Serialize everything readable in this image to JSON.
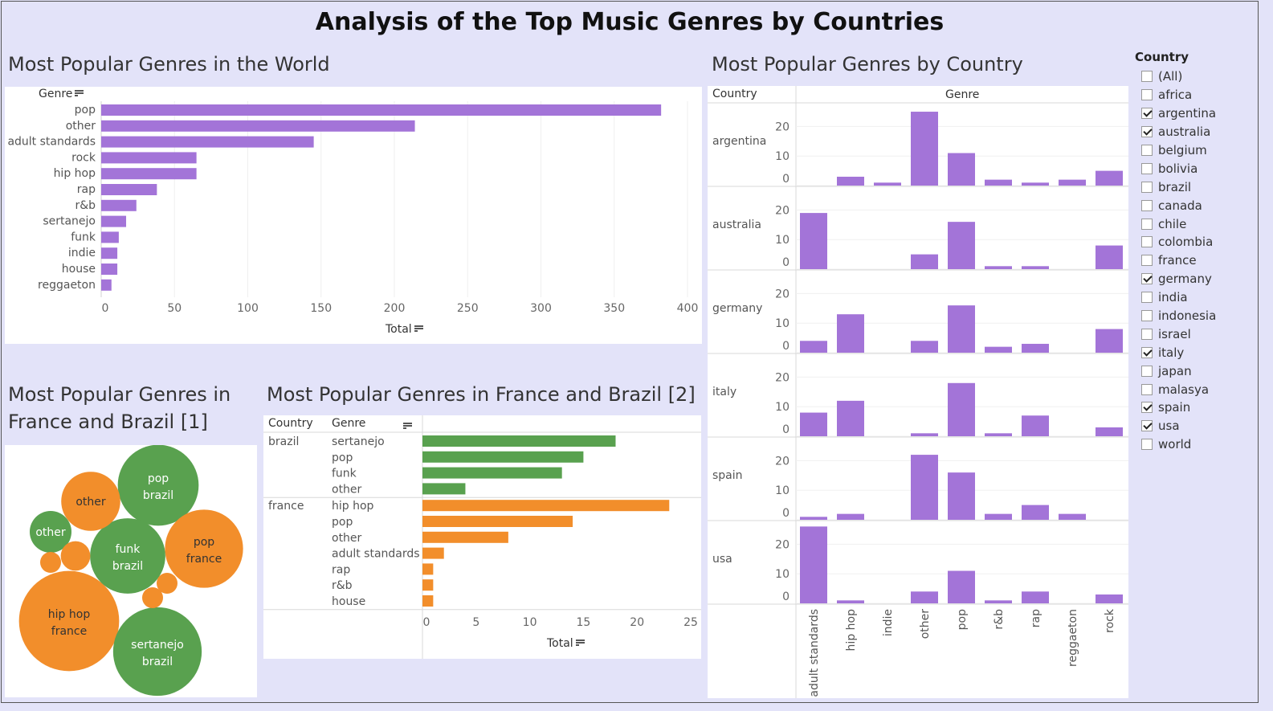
{
  "title": "Analysis of the Top Music Genres by Countries",
  "world": {
    "title": "Most Popular Genres in the World",
    "header": "Genre",
    "xlabel": "Total"
  },
  "bycountry": {
    "title": "Most Popular Genres by Country",
    "col_country": "Country",
    "col_genre": "Genre"
  },
  "bubble": {
    "title_line1": "Most Popular Genres in",
    "title_line2": "France and Brazil [1]"
  },
  "fb": {
    "title": "Most Popular Genres in France and Brazil [2]",
    "col_country": "Country",
    "col_genre": "Genre",
    "xlabel": "Total"
  },
  "filter": {
    "title": "Country",
    "options": [
      {
        "label": "(All)",
        "checked": false
      },
      {
        "label": "africa",
        "checked": false
      },
      {
        "label": "argentina",
        "checked": true
      },
      {
        "label": "australia",
        "checked": true
      },
      {
        "label": "belgium",
        "checked": false
      },
      {
        "label": "bolivia",
        "checked": false
      },
      {
        "label": "brazil",
        "checked": false
      },
      {
        "label": "canada",
        "checked": false
      },
      {
        "label": "chile",
        "checked": false
      },
      {
        "label": "colombia",
        "checked": false
      },
      {
        "label": "france",
        "checked": false
      },
      {
        "label": "germany",
        "checked": true
      },
      {
        "label": "india",
        "checked": false
      },
      {
        "label": "indonesia",
        "checked": false
      },
      {
        "label": "israel",
        "checked": false
      },
      {
        "label": "italy",
        "checked": true
      },
      {
        "label": "japan",
        "checked": false
      },
      {
        "label": "malasya",
        "checked": false
      },
      {
        "label": "spain",
        "checked": true
      },
      {
        "label": "usa",
        "checked": true
      },
      {
        "label": "world",
        "checked": false
      }
    ]
  },
  "colors": {
    "purple": "#a374d8",
    "green": "#59a14f",
    "orange": "#f28e2b",
    "background": "#e3e3f9"
  },
  "chart_data": [
    {
      "id": "world",
      "type": "bar",
      "orientation": "horizontal",
      "categories": [
        "pop",
        "other",
        "adult standards",
        "rock",
        "hip hop",
        "rap",
        "r&b",
        "sertanejo",
        "funk",
        "indie",
        "house",
        "reggaeton"
      ],
      "values": [
        382,
        214,
        145,
        65,
        65,
        38,
        24,
        17,
        12,
        11,
        11,
        7
      ],
      "xlabel": "Total",
      "ylabel": "Genre",
      "xlim": [
        0,
        400
      ],
      "xticks": [
        0,
        50,
        100,
        150,
        200,
        250,
        300,
        350,
        400
      ]
    },
    {
      "id": "bycountry",
      "type": "bar",
      "categories": [
        "adult standards",
        "hip hop",
        "indie",
        "other",
        "pop",
        "r&b",
        "rap",
        "reggaeton",
        "rock"
      ],
      "ylim": [
        0,
        28
      ],
      "yticks": [
        0,
        10,
        20
      ],
      "series": [
        {
          "name": "argentina",
          "values": [
            0,
            3,
            1,
            25,
            11,
            2,
            1,
            2,
            5
          ]
        },
        {
          "name": "australia",
          "values": [
            19,
            0,
            0,
            5,
            16,
            1,
            1,
            0,
            8
          ]
        },
        {
          "name": "germany",
          "values": [
            4,
            13,
            0,
            4,
            16,
            2,
            3,
            0,
            8
          ]
        },
        {
          "name": "italy",
          "values": [
            8,
            12,
            0,
            1,
            18,
            1,
            7,
            0,
            3
          ]
        },
        {
          "name": "spain",
          "values": [
            1,
            2,
            0,
            22,
            16,
            2,
            5,
            2,
            0
          ]
        },
        {
          "name": "usa",
          "values": [
            26,
            1,
            0,
            4,
            11,
            1,
            4,
            0,
            3
          ]
        }
      ]
    },
    {
      "id": "bubble",
      "type": "bubble",
      "bubbles": [
        {
          "label": "hip hop",
          "sub": "france",
          "value": 23,
          "country": "france"
        },
        {
          "label": "sertanejo",
          "sub": "brazil",
          "value": 18,
          "country": "brazil"
        },
        {
          "label": "pop",
          "sub": "brazil",
          "value": 15,
          "country": "brazil"
        },
        {
          "label": "pop",
          "sub": "france",
          "value": 14,
          "country": "france"
        },
        {
          "label": "funk",
          "sub": "brazil",
          "value": 13,
          "country": "brazil"
        },
        {
          "label": "other",
          "sub": "",
          "value": 8,
          "country": "france"
        },
        {
          "label": "other",
          "sub": "",
          "value": 4,
          "country": "brazil"
        },
        {
          "label": "",
          "sub": "",
          "value": 2,
          "country": "france"
        },
        {
          "label": "",
          "sub": "",
          "value": 1,
          "country": "france"
        },
        {
          "label": "",
          "sub": "",
          "value": 1,
          "country": "france"
        },
        {
          "label": "",
          "sub": "",
          "value": 1,
          "country": "france"
        }
      ]
    },
    {
      "id": "france_brazil",
      "type": "bar",
      "orientation": "horizontal",
      "xlabel": "Total",
      "xlim": [
        0,
        25
      ],
      "xticks": [
        0,
        5,
        10,
        15,
        20,
        25
      ],
      "groups": [
        {
          "country": "brazil",
          "color": "green",
          "genres": [
            "sertanejo",
            "pop",
            "funk",
            "other"
          ],
          "values": [
            18,
            15,
            13,
            4
          ]
        },
        {
          "country": "france",
          "color": "orange",
          "genres": [
            "hip hop",
            "pop",
            "other",
            "adult standards",
            "rap",
            "r&b",
            "house"
          ],
          "values": [
            23,
            14,
            8,
            2,
            1,
            1,
            1
          ]
        }
      ]
    }
  ]
}
